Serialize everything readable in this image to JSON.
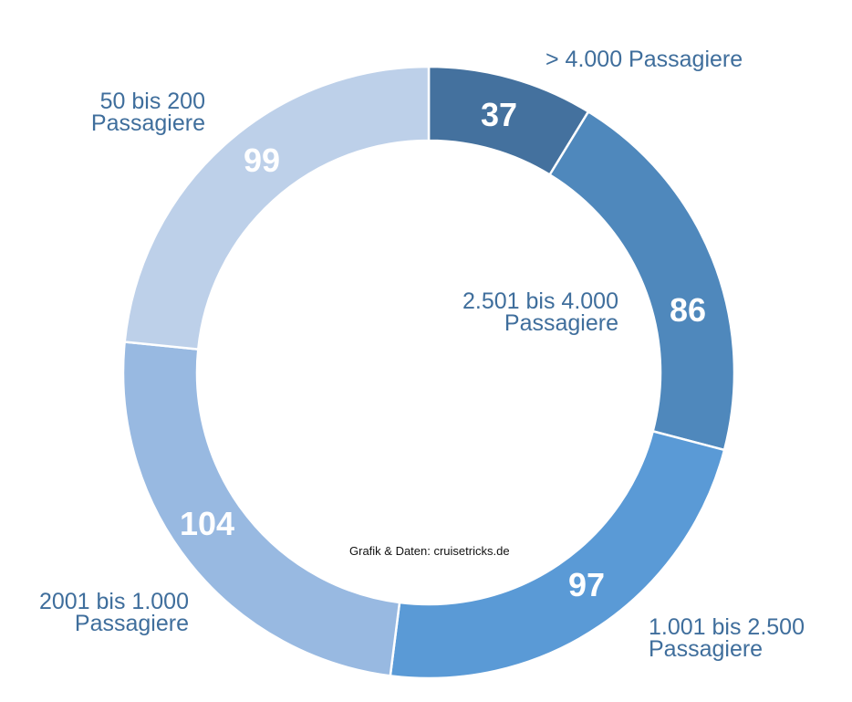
{
  "chart_data": {
    "type": "pie",
    "subtype": "doughnut",
    "title": "",
    "categories": [
      "> 4.000 Passagiere",
      "2.501 bis 4.000 Passagiere",
      "1.001 bis 2.500 Passagiere",
      "2001 bis 1.000 Passagiere",
      "50 bis 200 Passagiere"
    ],
    "values": [
      37,
      86,
      97,
      104,
      99
    ],
    "colors": [
      "#44719e",
      "#4f88bc",
      "#5a9ad6",
      "#98b9e1",
      "#bdd0e9"
    ],
    "start_angle_deg": 0,
    "direction": "clockwise",
    "legend": "none (direct labels)",
    "source_note": "Grafik & Daten: cruisetricks.de"
  },
  "labels": {
    "seg0": {
      "line1": "> 4.000 Passagiere",
      "line2": ""
    },
    "seg1": {
      "line1": "2.501 bis 4.000",
      "line2": "Passagiere"
    },
    "seg2": {
      "line1": "1.001 bis 2.500",
      "line2": "Passagiere"
    },
    "seg3": {
      "line1": "2001 bis 1.000",
      "line2": "Passagiere"
    },
    "seg4": {
      "line1": "50 bis 200",
      "line2": "Passagiere"
    }
  },
  "values_text": [
    "37",
    "86",
    "97",
    "104",
    "99"
  ],
  "credit": "Grafik & Daten: cruisetricks.de"
}
